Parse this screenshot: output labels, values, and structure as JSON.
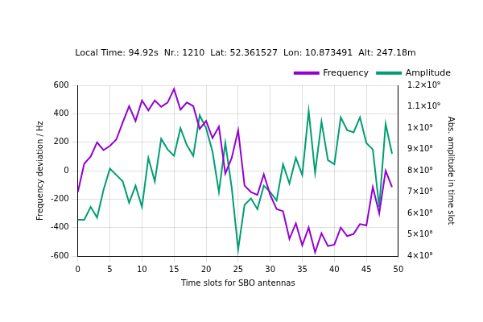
{
  "chart_data": {
    "type": "line",
    "title": "Local Time: 94.92s  Nr.: 1210  Lat: 52.361527  Lon: 10.873491  Alt: 247.18m",
    "x_label": "Time slots for SBO antennas",
    "y_label": "Frequency deviation / Hz",
    "y2_label": "Abs. amplitude in time slot",
    "x": [
      0,
      1,
      2,
      3,
      4,
      5,
      6,
      7,
      8,
      9,
      10,
      11,
      12,
      13,
      14,
      15,
      16,
      17,
      18,
      19,
      20,
      21,
      22,
      23,
      24,
      25,
      26,
      27,
      28,
      29,
      30,
      31,
      32,
      33,
      34,
      35,
      36,
      37,
      38,
      39,
      40,
      41,
      42,
      43,
      44,
      45,
      46,
      47,
      48,
      49
    ],
    "series": [
      {
        "name": "Frequency",
        "color": "#9400d3",
        "axis": "y",
        "values": [
          -150,
          50,
          100,
          200,
          145,
          175,
          220,
          340,
          455,
          350,
          495,
          425,
          495,
          450,
          480,
          575,
          430,
          480,
          455,
          295,
          350,
          230,
          310,
          -20,
          90,
          285,
          -105,
          -150,
          -170,
          -25,
          -170,
          -270,
          -285,
          -480,
          -370,
          -525,
          -400,
          -575,
          -440,
          -530,
          -520,
          -400,
          -460,
          -445,
          -375,
          -385,
          -115,
          -300,
          0,
          -115
        ]
      },
      {
        "name": "Amplitude",
        "color": "#009e73",
        "axis": "y2",
        "values": [
          570000000,
          570000000,
          630000000,
          580000000,
          710000000,
          810000000,
          780000000,
          750000000,
          650000000,
          730000000,
          630000000,
          860000000,
          750000000,
          950000000,
          900000000,
          870000000,
          1000000000,
          920000000,
          870000000,
          1060000000,
          1000000000,
          890000000,
          700000000,
          930000000,
          720000000,
          430000000,
          640000000,
          670000000,
          620000000,
          730000000,
          700000000,
          660000000,
          830000000,
          740000000,
          860000000,
          780000000,
          1080000000,
          790000000,
          1030000000,
          850000000,
          830000000,
          1050000000,
          990000000,
          980000000,
          1050000000,
          930000000,
          900000000,
          630000000,
          1020000000,
          880000000
        ]
      }
    ],
    "xlim": [
      0,
      50
    ],
    "xticks": [
      0,
      5,
      10,
      15,
      20,
      25,
      30,
      35,
      40,
      45,
      50
    ],
    "ylim": [
      -600,
      600
    ],
    "yticks": [
      -600,
      -400,
      -200,
      0,
      200,
      400,
      600
    ],
    "y2lim": [
      400000000,
      1200000000
    ],
    "y2ticks": [
      {
        "value": 400000000,
        "label": "4×10⁸"
      },
      {
        "value": 500000000,
        "label": "5×10⁸"
      },
      {
        "value": 600000000,
        "label": "6×10⁸"
      },
      {
        "value": 700000000,
        "label": "7×10⁸"
      },
      {
        "value": 800000000,
        "label": "8×10⁸"
      },
      {
        "value": 900000000,
        "label": "9×10⁸"
      },
      {
        "value": 1000000000,
        "label": "1×10⁹"
      },
      {
        "value": 1100000000,
        "label": "1.1×10⁹"
      },
      {
        "value": 1200000000,
        "label": "1.2×10⁹"
      }
    ],
    "grid": true,
    "legend": "upper right"
  }
}
